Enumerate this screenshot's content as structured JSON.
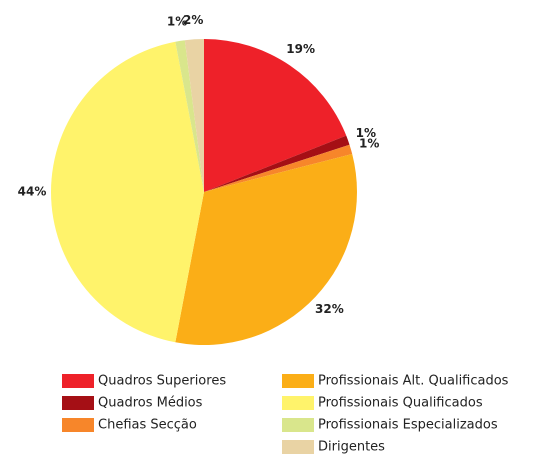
{
  "chart_data": {
    "type": "pie",
    "categories": [
      "Quadros Superiores",
      "Quadros Médios",
      "Chefias Secção",
      "Profissionais Alt. Qualificados",
      "Profissionais Qualificados",
      "Profissionais Especializados",
      "Dirigentes"
    ],
    "values": [
      19,
      1,
      1,
      32,
      44,
      1,
      2
    ],
    "value_labels": [
      "19%",
      "1%",
      "1%",
      "32%",
      "44%",
      "1%",
      "2%"
    ],
    "colors": [
      "#ee2129",
      "#a50f15",
      "#f7862a",
      "#fbae17",
      "#fff36b",
      "#d9e68c",
      "#e9d3a4"
    ],
    "legend": "bottom"
  }
}
